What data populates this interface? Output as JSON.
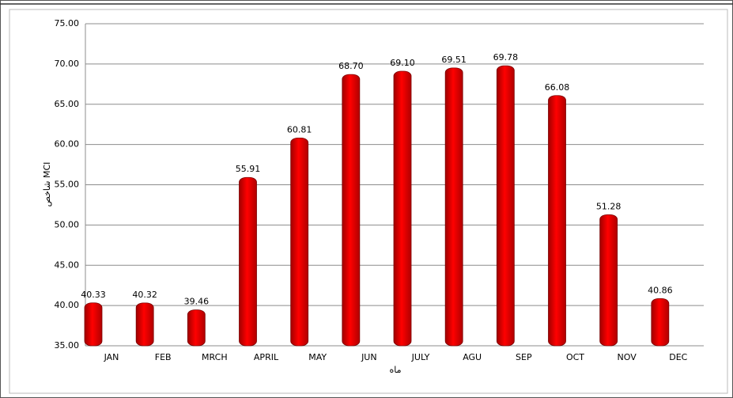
{
  "chart_data": {
    "type": "bar",
    "x_label": "ماه",
    "y_label": "شاخص MCI",
    "categories": [
      "JAN",
      "FEB",
      "MRCH",
      "APRIL",
      "MAY",
      "JUN",
      "JULY",
      "AGU",
      "SEP",
      "OCT",
      "NOV",
      "DEC"
    ],
    "values": [
      40.33,
      40.32,
      39.46,
      55.91,
      60.81,
      68.7,
      69.1,
      69.51,
      69.78,
      66.08,
      51.28,
      40.86
    ],
    "value_labels": [
      "40.33",
      "40.32",
      "39.46",
      "55.91",
      "60.81",
      "68.70",
      "69.10",
      "69.51",
      "69.78",
      "66.08",
      "51.28",
      "40.86"
    ],
    "color": "#ff0000",
    "ylim": [
      35,
      75
    ],
    "yticks": [
      {
        "value": 35,
        "label": "35.00"
      },
      {
        "value": 40,
        "label": "40.00"
      },
      {
        "value": 45,
        "label": "45.00"
      },
      {
        "value": 50,
        "label": "50.00"
      },
      {
        "value": 55,
        "label": "55.00"
      },
      {
        "value": 60,
        "label": "60.00"
      },
      {
        "value": 65,
        "label": "65.00"
      },
      {
        "value": 70,
        "label": "70.00"
      },
      {
        "value": 75,
        "label": "75.00"
      }
    ],
    "grid": true
  }
}
